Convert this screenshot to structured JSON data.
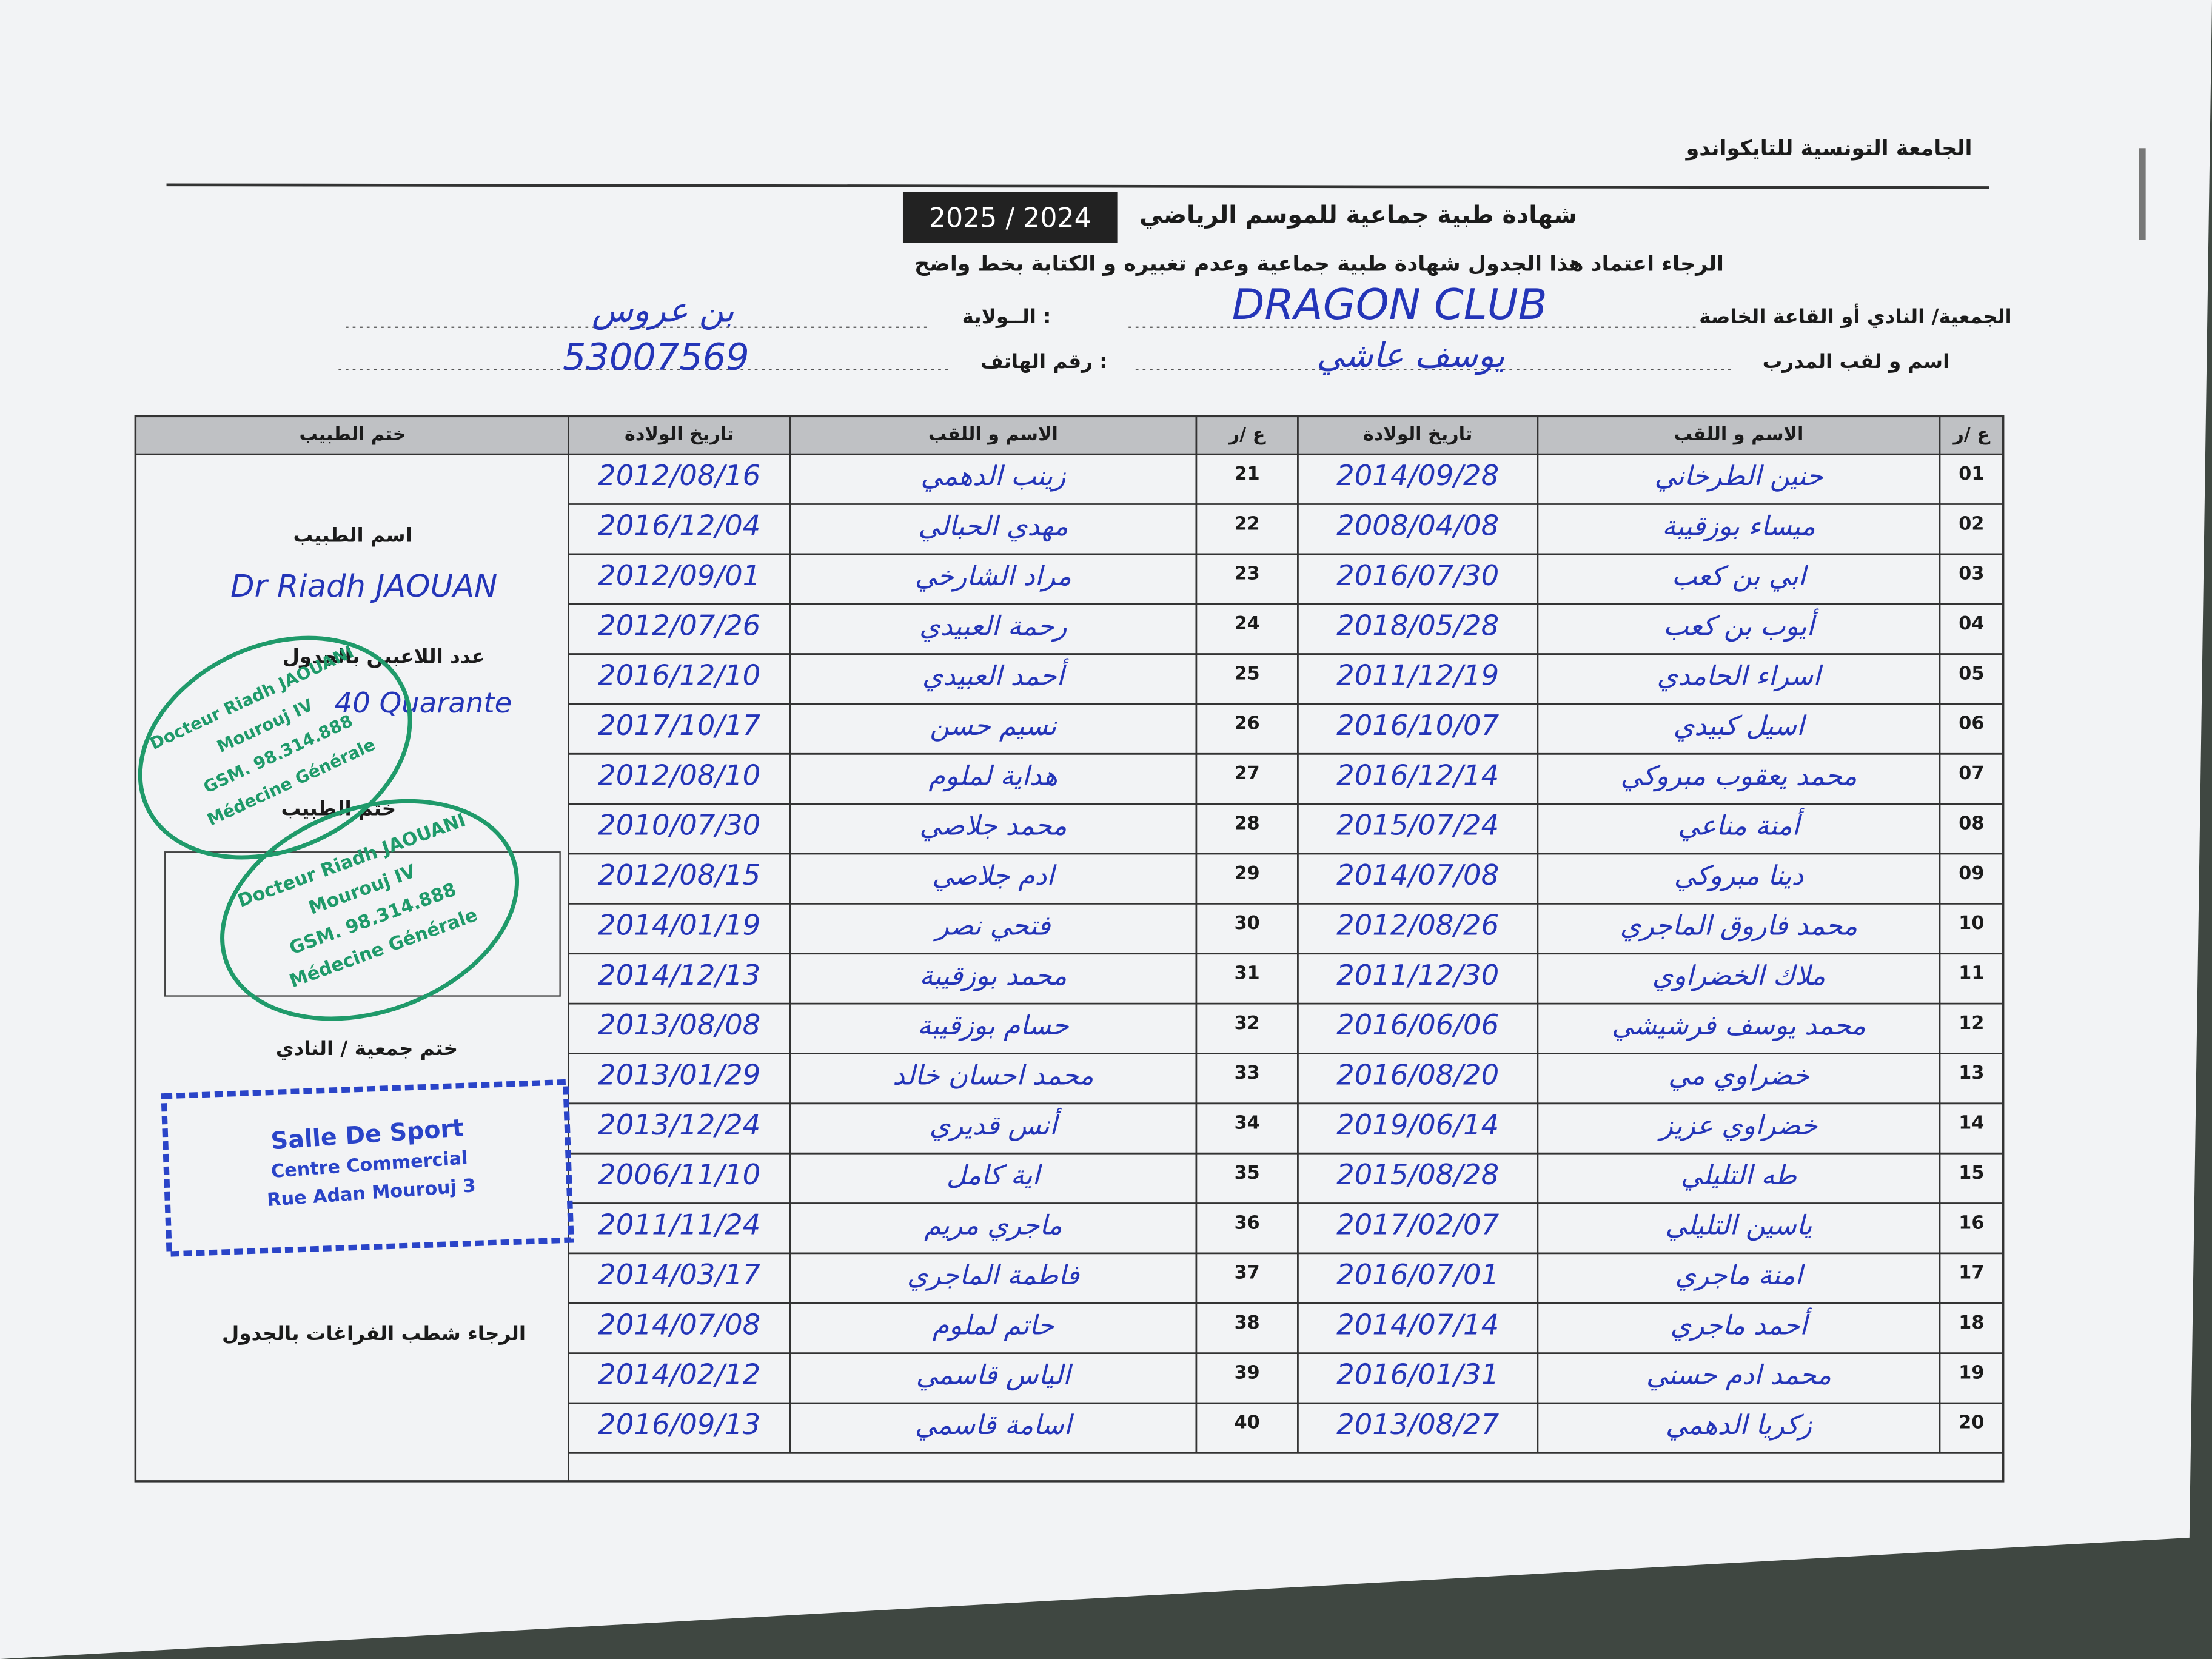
{
  "header": {
    "federation": "الجامعة التونسية للتايكواندو",
    "title": "شهادة طبية جماعية  للموسم الرياضي",
    "season": "2025 / 2024",
    "instruction": "الرجاء اعتماد هذا الجدول  شهادة طبية جماعية وعدم تغبيره و الكتابة بخط واضح"
  },
  "fields": {
    "club_label": "الجمعية/ النادي أو القاعة الخاصة",
    "club": "DRAGON CLUB",
    "wilaya_label": "الــولاية :",
    "wilaya": "بن عروس",
    "coach_label": "اسم و لقب المدرب",
    "coach": "يوسف عاشي",
    "phone_label": "رقم الهاتف :",
    "phone": "53007569"
  },
  "table": {
    "headers": {
      "number": "ع /ر",
      "name": "الاسم و اللقب",
      "birth": "تاريخ الولادة",
      "stamp": "ختم الطبيب"
    },
    "rows": [
      [
        "01",
        "حنين الطرخاني",
        "2014/09/28"
      ],
      [
        "02",
        "ميساء بوزقيبة",
        "2008/04/08"
      ],
      [
        "03",
        "ابي بن كعب",
        "2016/07/30"
      ],
      [
        "04",
        "أيوب بن كعب",
        "2018/05/28"
      ],
      [
        "05",
        "اسراء الحامدي",
        "2011/12/19"
      ],
      [
        "06",
        "اسيل كبيدي",
        "2016/10/07"
      ],
      [
        "07",
        "محمد يعقوب مبروكي",
        "2016/12/14"
      ],
      [
        "08",
        "أمنة مناعي",
        "2015/07/24"
      ],
      [
        "09",
        "دينا مبروكي",
        "2014/07/08"
      ],
      [
        "10",
        "محمد فاروق الماجري",
        "2012/08/26"
      ],
      [
        "11",
        "ملاك الخضراوي",
        "2011/12/30"
      ],
      [
        "12",
        "محمد يوسف فرشيشي",
        "2016/06/06"
      ],
      [
        "13",
        "خضراوي مي",
        "2016/08/20"
      ],
      [
        "14",
        "خضراوي عزيز",
        "2019/06/14"
      ],
      [
        "15",
        "طه التليلي",
        "2015/08/28"
      ],
      [
        "16",
        "ياسين التليلي",
        "2017/02/07"
      ],
      [
        "17",
        "امنة ماجري",
        "2016/07/01"
      ],
      [
        "18",
        "أحمد ماجري",
        "2014/07/14"
      ],
      [
        "19",
        "محمد ادم حسني",
        "2016/01/31"
      ],
      [
        "20",
        "زكريا الدهمي",
        "2013/08/27"
      ],
      [
        "21",
        "زينب الدهمي",
        "2012/08/16"
      ],
      [
        "22",
        "مهدي الحبالي",
        "2016/12/04"
      ],
      [
        "23",
        "مراد الشارخي",
        "2012/09/01"
      ],
      [
        "24",
        "رحمة العبيدي",
        "2012/07/26"
      ],
      [
        "25",
        "أحمد العبيدي",
        "2016/12/10"
      ],
      [
        "26",
        "نسيم حسن",
        "2017/10/17"
      ],
      [
        "27",
        "هداية لملوم",
        "2012/08/10"
      ],
      [
        "28",
        "محمد جلاصي",
        "2010/07/30"
      ],
      [
        "29",
        "ادم جلاصي",
        "2012/08/15"
      ],
      [
        "30",
        "فتحي نصر",
        "2014/01/19"
      ],
      [
        "31",
        "محمد بوزقيبة",
        "2014/12/13"
      ],
      [
        "32",
        "حسام بوزقيبة",
        "2013/08/08"
      ],
      [
        "33",
        "محمد احسان خالد",
        "2013/01/29"
      ],
      [
        "34",
        "أنس قديري",
        "2013/12/24"
      ],
      [
        "35",
        "اية كامل",
        "2006/11/10"
      ],
      [
        "36",
        "ماجري مريم",
        "2011/11/24"
      ],
      [
        "37",
        "فاطمة الماجري",
        "2014/03/17"
      ],
      [
        "38",
        "حاتم لملوم",
        "2014/07/08"
      ],
      [
        "39",
        "الياس قاسمي",
        "2014/02/12"
      ],
      [
        "40",
        "اسامة قاسمي",
        "2016/09/13"
      ]
    ]
  },
  "doctor": {
    "name_label": "اسم الطبيب",
    "name": "Dr Riadh JAOUAN",
    "count_label": "عدد اللاعبين بالجدول",
    "count": "40 Quarante",
    "stamp_label": "ختم الطبيب",
    "club_stamp_label": "ختم جمعية / النادي",
    "note": "الرجاء شطب  الفراغات بالجدول"
  },
  "stamps": {
    "doctor": [
      "Docteur Riadh JAOUANI",
      "Mourouj IV",
      "GSM. 98.314.888",
      "Médecine Générale"
    ],
    "club": [
      "Salle De Sport",
      "Centre Commercial",
      "Rue Adan Mourouj 3"
    ]
  }
}
